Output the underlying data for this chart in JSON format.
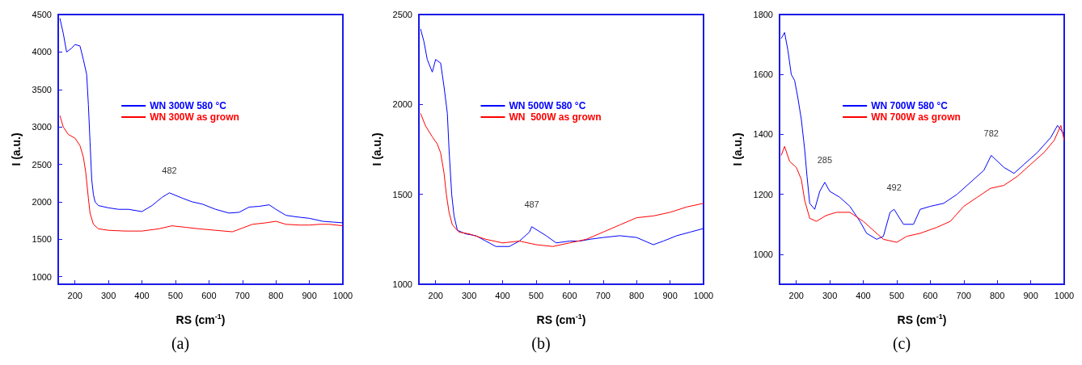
{
  "chart_data": [
    {
      "type": "line",
      "title": "(a)",
      "xlabel": "RS (cm$^{-1}$)",
      "ylabel": "I (a.u.)",
      "xlim": [
        150,
        1000
      ],
      "xticks": [
        200,
        300,
        400,
        500,
        600,
        700,
        800,
        900,
        1000
      ],
      "ylim": [
        900,
        4500
      ],
      "yticks": [
        1000,
        1500,
        2000,
        2500,
        3000,
        3500,
        4000,
        4500
      ],
      "legend": "top",
      "annotations": [
        {
          "text": "482",
          "x": 482,
          "y": 2120
        }
      ],
      "series": [
        {
          "name": "WN 300W 580 °C",
          "color": "#0000ff",
          "x": [
            155,
            165,
            175,
            190,
            200,
            215,
            225,
            235,
            240,
            245,
            250,
            255,
            260,
            270,
            300,
            330,
            360,
            400,
            430,
            460,
            482,
            520,
            550,
            580,
            620,
            660,
            690,
            720,
            750,
            780,
            800,
            830,
            860,
            900,
            940,
            970,
            1000
          ],
          "values": [
            4450,
            4250,
            4000,
            4050,
            4100,
            4080,
            3900,
            3700,
            3300,
            2800,
            2300,
            2100,
            2000,
            1950,
            1920,
            1900,
            1900,
            1870,
            1950,
            2060,
            2120,
            2050,
            2000,
            1970,
            1900,
            1850,
            1860,
            1930,
            1940,
            1960,
            1900,
            1820,
            1800,
            1780,
            1740,
            1730,
            1720
          ]
        },
        {
          "name": "WN 300W as grown",
          "color": "#ff0000",
          "x": [
            155,
            165,
            180,
            200,
            215,
            225,
            232,
            240,
            245,
            255,
            270,
            300,
            350,
            400,
            450,
            490,
            530,
            570,
            620,
            670,
            700,
            730,
            770,
            800,
            830,
            870,
            900,
            930,
            960,
            1000
          ],
          "values": [
            3150,
            3000,
            2900,
            2850,
            2750,
            2600,
            2400,
            2050,
            1850,
            1700,
            1640,
            1620,
            1610,
            1610,
            1640,
            1680,
            1660,
            1640,
            1620,
            1600,
            1650,
            1700,
            1720,
            1740,
            1700,
            1690,
            1690,
            1700,
            1700,
            1680
          ]
        }
      ]
    },
    {
      "type": "line",
      "title": "(b)",
      "xlabel": "RS (cm$^{-1}$)",
      "ylabel": "I (a.u.)",
      "xlim": [
        150,
        1000
      ],
      "xticks": [
        200,
        300,
        400,
        500,
        600,
        700,
        800,
        900,
        1000
      ],
      "ylim": [
        1000,
        2500
      ],
      "yticks": [
        1000,
        1500,
        2000,
        2500
      ],
      "legend": "top",
      "annotations": [
        {
          "text": "487",
          "x": 487,
          "y": 1320
        }
      ],
      "series": [
        {
          "name": "WN 500W 580 °C",
          "color": "#0000ff",
          "x": [
            155,
            165,
            175,
            190,
            200,
            215,
            225,
            235,
            240,
            248,
            255,
            265,
            290,
            320,
            350,
            380,
            420,
            450,
            480,
            487,
            530,
            560,
            600,
            630,
            660,
            700,
            750,
            800,
            850,
            880,
            920,
            960,
            1000
          ],
          "values": [
            2420,
            2350,
            2250,
            2180,
            2250,
            2230,
            2100,
            1950,
            1750,
            1500,
            1380,
            1300,
            1280,
            1270,
            1240,
            1210,
            1210,
            1240,
            1290,
            1320,
            1270,
            1230,
            1240,
            1240,
            1250,
            1260,
            1270,
            1260,
            1220,
            1240,
            1270,
            1290,
            1310
          ]
        },
        {
          "name": "WN  500W as grown",
          "color": "#ff0000",
          "x": [
            155,
            170,
            190,
            205,
            215,
            225,
            232,
            240,
            250,
            270,
            300,
            350,
            400,
            450,
            500,
            550,
            600,
            650,
            700,
            750,
            800,
            850,
            900,
            950,
            1000
          ],
          "values": [
            1950,
            1880,
            1820,
            1780,
            1730,
            1620,
            1500,
            1400,
            1330,
            1290,
            1280,
            1250,
            1230,
            1240,
            1220,
            1210,
            1230,
            1250,
            1290,
            1330,
            1370,
            1380,
            1400,
            1430,
            1450
          ]
        }
      ]
    },
    {
      "type": "line",
      "title": "(c)",
      "xlabel": "RS (cm$^{-1}$)",
      "ylabel": "I (a.u.)",
      "xlim": [
        150,
        1000
      ],
      "xticks": [
        200,
        300,
        400,
        500,
        600,
        700,
        800,
        900,
        1000
      ],
      "ylim": [
        900,
        1800
      ],
      "yticks": [
        1000,
        1200,
        1400,
        1600,
        1800
      ],
      "legend": "top",
      "annotations": [
        {
          "text": "285",
          "x": 285,
          "y": 1240
        },
        {
          "text": "492",
          "x": 492,
          "y": 1150
        },
        {
          "text": "782",
          "x": 782,
          "y": 1330
        }
      ],
      "series": [
        {
          "name": "WN 700W 580 °C",
          "color": "#0000ff",
          "x": [
            155,
            165,
            175,
            185,
            195,
            205,
            215,
            225,
            232,
            240,
            255,
            270,
            285,
            300,
            330,
            360,
            390,
            410,
            440,
            460,
            480,
            492,
            520,
            550,
            570,
            600,
            640,
            680,
            720,
            760,
            782,
            820,
            850,
            880,
            920,
            960,
            980,
            1000
          ],
          "values": [
            1720,
            1740,
            1680,
            1600,
            1580,
            1520,
            1450,
            1350,
            1260,
            1170,
            1150,
            1210,
            1240,
            1210,
            1190,
            1160,
            1110,
            1070,
            1050,
            1060,
            1140,
            1150,
            1100,
            1100,
            1150,
            1160,
            1170,
            1200,
            1240,
            1280,
            1330,
            1290,
            1270,
            1300,
            1340,
            1390,
            1430,
            1400
          ]
        },
        {
          "name": "WN 700W as grown",
          "color": "#ff0000",
          "x": [
            155,
            165,
            180,
            200,
            215,
            225,
            240,
            260,
            290,
            320,
            360,
            400,
            430,
            460,
            500,
            530,
            570,
            620,
            660,
            700,
            740,
            780,
            820,
            860,
            900,
            940,
            970,
            990,
            1000
          ],
          "values": [
            1330,
            1360,
            1310,
            1290,
            1250,
            1180,
            1120,
            1110,
            1130,
            1140,
            1140,
            1110,
            1080,
            1050,
            1040,
            1060,
            1070,
            1090,
            1110,
            1160,
            1190,
            1220,
            1230,
            1260,
            1300,
            1340,
            1380,
            1430,
            1380
          ]
        }
      ]
    }
  ]
}
